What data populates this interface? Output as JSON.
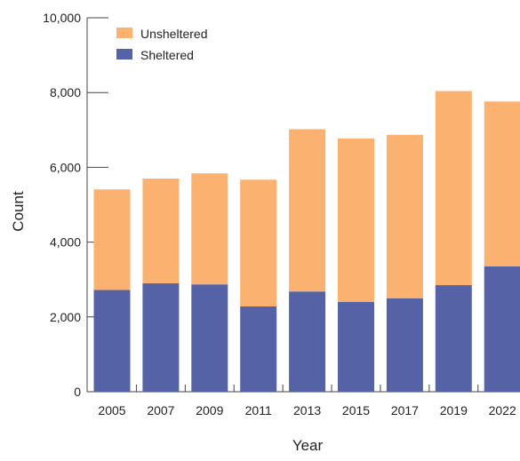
{
  "chart_data": {
    "type": "bar",
    "stacked": true,
    "categories": [
      "2005",
      "2007",
      "2009",
      "2011",
      "2013",
      "2015",
      "2017",
      "2019",
      "2022"
    ],
    "series": [
      {
        "name": "Sheltered",
        "color": "#5563a6",
        "values": [
          2720,
          2900,
          2870,
          2280,
          2680,
          2400,
          2500,
          2850,
          3350
        ]
      },
      {
        "name": "Unsheltered",
        "color": "#fbb170",
        "values": [
          2690,
          2800,
          2970,
          3390,
          4340,
          4370,
          4370,
          5190,
          4410
        ]
      }
    ],
    "xlabel": "Year",
    "ylabel": "Count",
    "ylim": [
      0,
      10000
    ],
    "yticks": [
      "0",
      "2,000",
      "4,000",
      "6,000",
      "8,000",
      "10,000"
    ],
    "legend_position": "top-left",
    "grid": false
  }
}
